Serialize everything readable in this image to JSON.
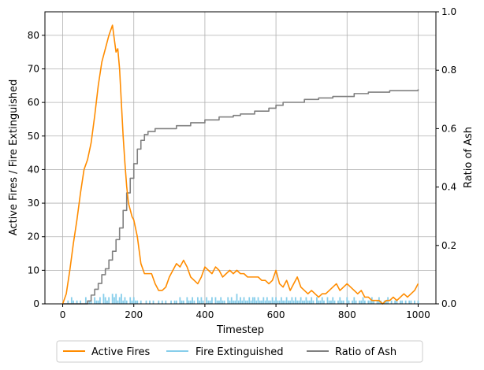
{
  "chart_data": {
    "type": "line",
    "xlabel": "Timestep",
    "ylabel_left": "Active Fires / Fire Extinguished",
    "ylabel_right": "Ratio of Ash",
    "xlim": [
      -50,
      1050
    ],
    "ylim_left": [
      0,
      87
    ],
    "ylim_right": [
      0,
      1.0
    ],
    "xticks": [
      0,
      200,
      400,
      600,
      800,
      1000
    ],
    "yticks_left": [
      0,
      10,
      20,
      30,
      40,
      50,
      60,
      70,
      80
    ],
    "yticks_right": [
      0.0,
      0.2,
      0.4,
      0.6,
      0.8,
      1.0
    ],
    "grid": true,
    "legend_position": "bottom-center outside",
    "series": [
      {
        "name": "Active Fires",
        "axis": "left",
        "color": "#ff8c00",
        "x": [
          0,
          10,
          20,
          30,
          40,
          50,
          60,
          70,
          80,
          90,
          100,
          110,
          120,
          130,
          140,
          150,
          155,
          160,
          165,
          170,
          175,
          180,
          185,
          190,
          195,
          200,
          210,
          220,
          230,
          240,
          250,
          260,
          270,
          280,
          290,
          300,
          310,
          320,
          330,
          340,
          350,
          360,
          370,
          380,
          390,
          400,
          410,
          420,
          430,
          440,
          450,
          460,
          470,
          480,
          490,
          500,
          510,
          520,
          530,
          540,
          550,
          560,
          570,
          580,
          590,
          600,
          610,
          620,
          630,
          640,
          650,
          660,
          670,
          680,
          690,
          700,
          710,
          720,
          730,
          740,
          750,
          760,
          770,
          780,
          790,
          800,
          810,
          820,
          830,
          840,
          850,
          860,
          870,
          880,
          890,
          900,
          910,
          920,
          930,
          940,
          950,
          960,
          970,
          980,
          990,
          1000
        ],
        "values": [
          0,
          3,
          10,
          18,
          25,
          33,
          40,
          43,
          48,
          56,
          65,
          72,
          76,
          80,
          83,
          75,
          76,
          70,
          60,
          50,
          42,
          35,
          30,
          28,
          26,
          25,
          20,
          12,
          9,
          9,
          9,
          6,
          4,
          4,
          5,
          8,
          10,
          12,
          11,
          13,
          11,
          8,
          7,
          6,
          8,
          11,
          10,
          9,
          11,
          10,
          8,
          9,
          10,
          9,
          10,
          9,
          9,
          8,
          8,
          8,
          8,
          7,
          7,
          6,
          7,
          10,
          6,
          5,
          7,
          4,
          6,
          8,
          5,
          4,
          3,
          4,
          3,
          2,
          3,
          3,
          4,
          5,
          6,
          4,
          5,
          6,
          5,
          4,
          3,
          4,
          2,
          2,
          1,
          1,
          1,
          0,
          1,
          1,
          2,
          1,
          2,
          3,
          2,
          3,
          4,
          6
        ]
      },
      {
        "name": "Fire Extinguished",
        "axis": "left",
        "color": "#87ceeb",
        "x_start": 0,
        "x_step": 5,
        "values": [
          0,
          0,
          0,
          1,
          0,
          2,
          1,
          0,
          1,
          0,
          1,
          0,
          0,
          2,
          0,
          1,
          1,
          0,
          2,
          1,
          1,
          2,
          0,
          3,
          2,
          1,
          2,
          0,
          3,
          2,
          3,
          1,
          2,
          3,
          1,
          2,
          1,
          0,
          2,
          1,
          2,
          1,
          1,
          0,
          1,
          0,
          0,
          1,
          0,
          1,
          0,
          1,
          0,
          0,
          1,
          0,
          1,
          0,
          1,
          0,
          0,
          1,
          0,
          1,
          1,
          0,
          2,
          1,
          1,
          0,
          2,
          1,
          1,
          2,
          1,
          0,
          2,
          1,
          2,
          1,
          0,
          2,
          1,
          1,
          2,
          0,
          2,
          1,
          1,
          2,
          1,
          1,
          0,
          2,
          1,
          2,
          1,
          1,
          3,
          1,
          2,
          1,
          2,
          1,
          1,
          2,
          1,
          2,
          2,
          1,
          2,
          1,
          1,
          2,
          1,
          2,
          1,
          1,
          2,
          1,
          2,
          1,
          1,
          2,
          1,
          1,
          2,
          1,
          1,
          2,
          1,
          2,
          1,
          1,
          2,
          1,
          1,
          2,
          1,
          1,
          2,
          1,
          0,
          2,
          1,
          1,
          2,
          1,
          0,
          2,
          1,
          1,
          2,
          1,
          0,
          1,
          2,
          1,
          1,
          0,
          2,
          1,
          0,
          1,
          2,
          1,
          0,
          1,
          1,
          2,
          1,
          0,
          1,
          1,
          2,
          1,
          0,
          1,
          2,
          1,
          0,
          1,
          1,
          2,
          0,
          1,
          0,
          1,
          1,
          0,
          1,
          1,
          0,
          1,
          0,
          1,
          1,
          0,
          1,
          0,
          1
        ]
      },
      {
        "name": "Ratio of Ash",
        "axis": "right",
        "color": "#808080",
        "x": [
          0,
          60,
          70,
          80,
          90,
          100,
          110,
          120,
          130,
          140,
          150,
          160,
          170,
          180,
          190,
          200,
          210,
          220,
          230,
          240,
          260,
          280,
          300,
          320,
          340,
          360,
          380,
          400,
          420,
          440,
          460,
          480,
          500,
          520,
          540,
          560,
          580,
          600,
          620,
          640,
          660,
          680,
          700,
          720,
          740,
          760,
          780,
          800,
          820,
          840,
          860,
          880,
          900,
          920,
          940,
          960,
          980,
          1000
        ],
        "values": [
          0,
          0,
          0.01,
          0.03,
          0.05,
          0.07,
          0.1,
          0.12,
          0.15,
          0.18,
          0.22,
          0.26,
          0.32,
          0.38,
          0.43,
          0.48,
          0.53,
          0.56,
          0.58,
          0.59,
          0.6,
          0.6,
          0.6,
          0.61,
          0.61,
          0.62,
          0.62,
          0.63,
          0.63,
          0.64,
          0.64,
          0.645,
          0.65,
          0.65,
          0.66,
          0.66,
          0.67,
          0.68,
          0.69,
          0.69,
          0.69,
          0.7,
          0.7,
          0.705,
          0.705,
          0.71,
          0.71,
          0.71,
          0.72,
          0.72,
          0.725,
          0.725,
          0.725,
          0.73,
          0.73,
          0.73,
          0.73,
          0.735
        ]
      }
    ]
  }
}
